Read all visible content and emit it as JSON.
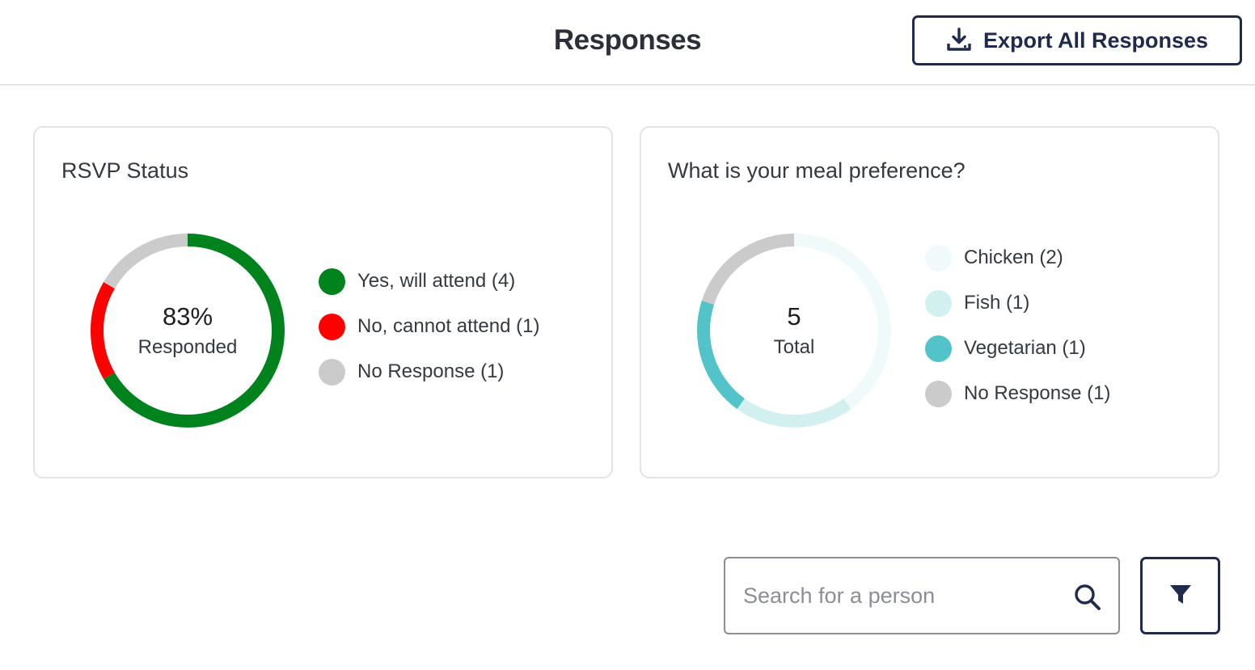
{
  "header": {
    "title": "Responses",
    "export_label": "Export All Responses",
    "export_icon": "download-icon"
  },
  "rsvp_card": {
    "title": "RSVP Status",
    "center_value": "83%",
    "center_label": "Responded",
    "legend": [
      {
        "label": "Yes, will attend (4)",
        "color": "#00821c"
      },
      {
        "label": "No, cannot attend (1)",
        "color": "#ff0000"
      },
      {
        "label": "No Response (1)",
        "color": "#cbcbcb"
      }
    ]
  },
  "meal_card": {
    "title": "What is your meal preference?",
    "center_value": "5",
    "center_label": "Total",
    "legend": [
      {
        "label": "Chicken (2)",
        "color": "#f0fafa"
      },
      {
        "label": "Fish (1)",
        "color": "#d3f0f1"
      },
      {
        "label": "Vegetarian (1)",
        "color": "#52c3c8"
      },
      {
        "label": "No Response (1)",
        "color": "#cbcbcb"
      }
    ]
  },
  "chart_data": [
    {
      "type": "pie",
      "title": "RSVP Status",
      "categories": [
        "Yes, will attend",
        "No, cannot attend",
        "No Response"
      ],
      "values": [
        4,
        1,
        1
      ],
      "colors": [
        "#00821c",
        "#ff0000",
        "#cbcbcb"
      ],
      "donut": true,
      "legend": "right"
    },
    {
      "type": "pie",
      "title": "What is your meal preference?",
      "categories": [
        "Chicken",
        "Fish",
        "Vegetarian",
        "No Response"
      ],
      "values": [
        2,
        1,
        1,
        1
      ],
      "colors": [
        "#f0fafa",
        "#d3f0f1",
        "#52c3c8",
        "#cbcbcb"
      ],
      "donut": true,
      "legend": "right"
    }
  ],
  "search": {
    "placeholder": "Search for a person",
    "value": "",
    "icon": "search-icon"
  },
  "filter": {
    "icon": "filter-icon"
  }
}
